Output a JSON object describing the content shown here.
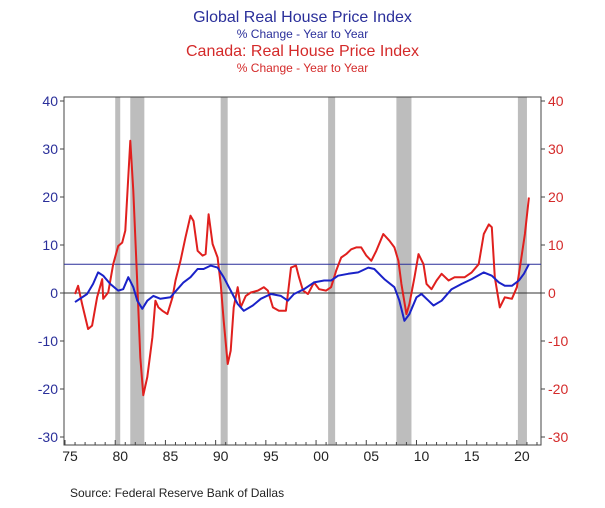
{
  "chart_data": {
    "type": "line",
    "titles": [
      {
        "text": "Global Real House Price Index",
        "color": "#2a2f9a"
      },
      {
        "text": "% Change - Year to Year",
        "color": "#2a2f9a"
      },
      {
        "text": "Canada: Real House Price Index",
        "color": "#d42a2a"
      },
      {
        "text": "% Change - Year to Year",
        "color": "#d42a2a"
      }
    ],
    "source": "Source:  Federal Reserve Bank of Dallas",
    "xlim": [
      1974.9,
      2022.4
    ],
    "ylim": [
      -30,
      40
    ],
    "x_ticks": [
      {
        "year": 1975.5,
        "label": "75"
      },
      {
        "year": 1980.5,
        "label": "80"
      },
      {
        "year": 1985.5,
        "label": "85"
      },
      {
        "year": 1990.5,
        "label": "90"
      },
      {
        "year": 1995.5,
        "label": "95"
      },
      {
        "year": 2000.5,
        "label": "00"
      },
      {
        "year": 2005.5,
        "label": "05"
      },
      {
        "year": 2010.5,
        "label": "10"
      },
      {
        "year": 2015.5,
        "label": "15"
      },
      {
        "year": 2020.5,
        "label": "20"
      }
    ],
    "y_ticks_left": [
      "40",
      "30",
      "20",
      "10",
      "0",
      "-10",
      "-20",
      "-30"
    ],
    "y_ticks_right": [
      "40",
      "30",
      "20",
      "10",
      "0",
      "-10",
      "-20",
      "-30"
    ],
    "y_tick_values": [
      40,
      30,
      20,
      10,
      0,
      -10,
      -20,
      -30
    ],
    "left_axis_color": "#2a2f9a",
    "right_axis_color": "#d42a2a",
    "reference_lines": [
      {
        "value": 0,
        "color": "#333333"
      },
      {
        "value": 6,
        "color": "#2a2f9a"
      }
    ],
    "recessions": [
      [
        1980.0,
        1980.5
      ],
      [
        1981.5,
        1982.9
      ],
      [
        1990.5,
        1991.2
      ],
      [
        2001.2,
        2001.9
      ],
      [
        2008.0,
        2009.5
      ],
      [
        2020.1,
        2021.0
      ]
    ],
    "recession_color": "#bdbdbd",
    "series": [
      {
        "key": "global",
        "color": "#1a22c8",
        "axis": "left",
        "x": [
          1976.0,
          1977.2,
          1977.8,
          1978.3,
          1978.8,
          1979.5,
          1980.3,
          1980.8,
          1981.3,
          1981.8,
          1982.2,
          1982.7,
          1983.2,
          1983.8,
          1984.5,
          1985.5,
          1986.2,
          1986.8,
          1987.5,
          1988.2,
          1988.8,
          1989.5,
          1990.2,
          1990.8,
          1991.5,
          1992.2,
          1992.8,
          1993.7,
          1994.5,
          1995.5,
          1996.5,
          1997.2,
          1997.8,
          1998.8,
          1999.8,
          2000.8,
          2001.5,
          2002.2,
          2003.2,
          2004.2,
          2005.2,
          2005.8,
          2006.8,
          2007.8,
          2008.3,
          2008.8,
          2009.3,
          2010.0,
          2010.5,
          2011.2,
          2011.7,
          2012.5,
          2013.5,
          2014.5,
          2015.5,
          2016.7,
          2017.5,
          2018.2,
          2018.8,
          2019.5,
          2020.2,
          2020.7,
          2021.2
        ],
        "y": [
          -1.9,
          -0.2,
          1.9,
          4.3,
          3.6,
          1.9,
          0.5,
          0.8,
          3.3,
          1.2,
          -1.6,
          -3.3,
          -1.6,
          -0.6,
          -1.2,
          -0.9,
          0.8,
          2.2,
          3.3,
          5.0,
          5.0,
          5.7,
          5.3,
          3.3,
          0.5,
          -2.3,
          -3.7,
          -2.6,
          -1.2,
          -0.2,
          -0.6,
          -1.6,
          -0.2,
          0.8,
          2.2,
          2.6,
          2.6,
          3.6,
          4.0,
          4.3,
          5.3,
          5.0,
          2.9,
          1.2,
          -1.6,
          -5.8,
          -4.4,
          -0.9,
          -0.2,
          -1.6,
          -2.6,
          -1.6,
          0.8,
          1.9,
          2.9,
          4.3,
          3.6,
          2.2,
          1.5,
          1.5,
          2.6,
          4.0,
          6.0
        ]
      },
      {
        "key": "canada",
        "color": "#e0201e",
        "axis": "right",
        "x": [
          1976.0,
          1976.3,
          1976.7,
          1977.3,
          1977.7,
          1978.2,
          1978.7,
          1978.8,
          1979.3,
          1979.8,
          1980.3,
          1980.7,
          1981.0,
          1981.5,
          1981.8,
          1982.2,
          1982.5,
          1982.8,
          1983.2,
          1983.7,
          1984.0,
          1984.3,
          1984.7,
          1985.2,
          1985.7,
          1986.0,
          1986.5,
          1987.0,
          1987.5,
          1987.8,
          1988.2,
          1988.7,
          1989.0,
          1989.3,
          1989.7,
          1990.2,
          1990.5,
          1990.8,
          1991.2,
          1991.5,
          1991.8,
          1992.2,
          1992.5,
          1993.0,
          1993.5,
          1994.2,
          1994.8,
          1995.2,
          1995.7,
          1996.3,
          1997.0,
          1997.5,
          1998.0,
          1998.3,
          1998.7,
          1999.2,
          1999.8,
          2000.3,
          2001.0,
          2001.5,
          2002.0,
          2002.5,
          2003.0,
          2003.5,
          2004.0,
          2004.5,
          2005.0,
          2005.5,
          2006.0,
          2006.7,
          2007.3,
          2007.8,
          2008.2,
          2008.5,
          2009.0,
          2009.3,
          2009.8,
          2010.2,
          2010.7,
          2011.0,
          2011.5,
          2012.0,
          2012.5,
          2013.2,
          2013.8,
          2014.8,
          2015.5,
          2016.2,
          2016.7,
          2017.2,
          2017.5,
          2017.8,
          2018.3,
          2018.8,
          2019.5,
          2020.0,
          2020.3,
          2020.8,
          2021.2
        ],
        "y": [
          -0.2,
          1.5,
          -2.3,
          -7.5,
          -6.8,
          -0.9,
          2.9,
          -1.2,
          0.1,
          6.0,
          9.8,
          10.5,
          13.0,
          31.7,
          21.3,
          1.9,
          -13.4,
          -21.3,
          -17.5,
          -9.2,
          -1.6,
          -3.0,
          -3.7,
          -4.4,
          -0.9,
          2.6,
          6.7,
          11.6,
          16.1,
          15.0,
          8.8,
          7.8,
          8.1,
          16.4,
          10.2,
          7.4,
          1.9,
          -5.8,
          -14.8,
          -12.0,
          -3.0,
          1.2,
          -3.0,
          -0.6,
          0.1,
          0.5,
          1.2,
          0.5,
          -3.0,
          -3.7,
          -3.7,
          5.3,
          5.7,
          3.3,
          0.5,
          -0.2,
          2.2,
          0.8,
          0.5,
          1.2,
          4.6,
          7.4,
          8.1,
          9.1,
          9.5,
          9.5,
          7.8,
          6.7,
          8.8,
          12.3,
          10.9,
          9.5,
          6.7,
          1.9,
          -4.4,
          -2.3,
          3.3,
          8.1,
          6.0,
          1.9,
          0.8,
          2.6,
          4.0,
          2.6,
          3.3,
          3.3,
          4.3,
          6.0,
          12.3,
          14.3,
          13.7,
          3.3,
          -3.0,
          -0.9,
          -1.2,
          1.2,
          5.3,
          12.3,
          19.9
        ]
      }
    ]
  }
}
